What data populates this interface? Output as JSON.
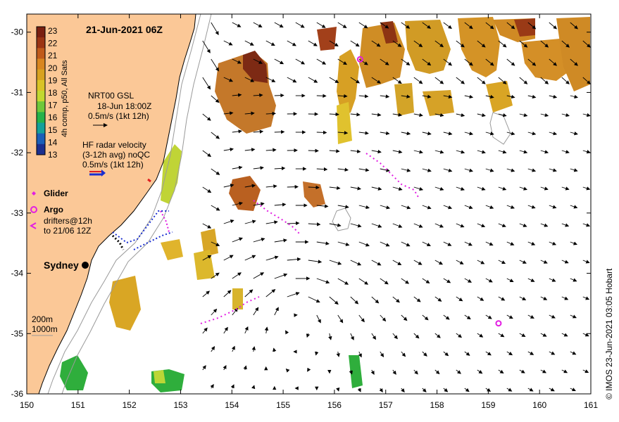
{
  "title": "21-Jun-2021 06Z",
  "credit": "© IMOS 23-Jun-2021 03:05 Hobart",
  "colorbar": {
    "label": "4h comp, p50, All Sats",
    "values": [
      "23",
      "22",
      "21",
      "20",
      "19",
      "18",
      "17",
      "16",
      "15",
      "14",
      "13"
    ],
    "colors": [
      "#7a1f10",
      "#9b3413",
      "#c05a1a",
      "#d9861f",
      "#d8a220",
      "#d9c326",
      "#c2d830",
      "#6fc83a",
      "#26b24a",
      "#14a09a",
      "#1a5fb8",
      "#1b2f8f"
    ]
  },
  "legend": {
    "nrt_title": "NRT00 GSL",
    "nrt_date": "18-Jun 18:00Z",
    "nrt_scale": "0.5m/s (1kt 12h)",
    "hf_title": "HF radar velocity",
    "hf_sub": "(3-12h avg) noQC",
    "hf_scale": "0.5m/s (1kt 12h)",
    "glider": "Glider",
    "argo": "Argo",
    "drifters_1": "drifters@12h",
    "drifters_2": "to 21/06 12Z",
    "isobath_1": "200m",
    "isobath_2": "1000m"
  },
  "place": {
    "name": "Sydney",
    "lon": 151.2,
    "lat": -33.87
  },
  "axes": {
    "x_ticks": [
      "150",
      "151",
      "152",
      "153",
      "154",
      "155",
      "156",
      "157",
      "158",
      "159",
      "160",
      "161"
    ],
    "y_ticks": [
      "-30",
      "-31",
      "-32",
      "-33",
      "-34",
      "-35",
      "-36"
    ],
    "lon_range": [
      150,
      161
    ],
    "lat_range": [
      -36,
      -29.7
    ]
  },
  "argo_floats": [
    {
      "lon": 156.5,
      "lat": -30.45
    },
    {
      "lon": 159.2,
      "lat": -34.83
    }
  ]
}
